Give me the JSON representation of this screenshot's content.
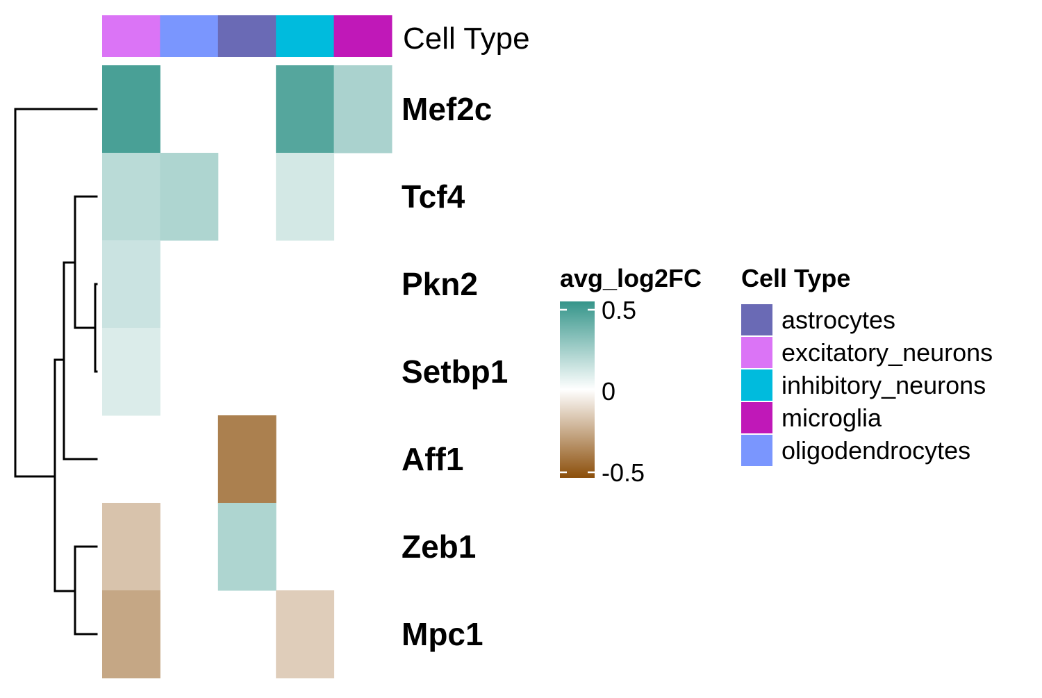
{
  "chart_data": {
    "type": "heatmap",
    "title": "",
    "annotation_label": "Cell Type",
    "columns": [
      "excitatory_neurons",
      "oligodendrocytes",
      "astrocytes",
      "inhibitory_neurons",
      "microglia"
    ],
    "rows": [
      "Mef2c",
      "Tcf4",
      "Pkn2",
      "Setbp1",
      "Aff1",
      "Zeb1",
      "Mpc1"
    ],
    "values": [
      [
        0.45,
        null,
        null,
        0.42,
        0.21
      ],
      [
        0.17,
        0.2,
        null,
        0.11,
        null
      ],
      [
        0.13,
        null,
        null,
        null,
        null
      ],
      [
        0.09,
        null,
        null,
        null,
        null
      ],
      [
        null,
        null,
        -0.36,
        null,
        null
      ],
      [
        -0.17,
        null,
        0.2,
        null,
        -0.0
      ],
      [
        -0.25,
        null,
        null,
        -0.14,
        null
      ]
    ],
    "color_scale": {
      "title": "avg_log2FC",
      "min": -0.5,
      "max": 0.5,
      "low_color": "#8B4E0A",
      "mid_color": "#FFFFFF",
      "high_color": "#35958A",
      "ticks": [
        {
          "value": 0.5,
          "label": "0.5"
        },
        {
          "value": 0,
          "label": "0"
        },
        {
          "value": -0.5,
          "label": "-0.5"
        }
      ]
    },
    "annotation_legend": {
      "title": "Cell Type",
      "items": [
        {
          "name": "astrocytes",
          "color": "#6A6AB5"
        },
        {
          "name": "excitatory_neurons",
          "color": "#DB74F6"
        },
        {
          "name": "inhibitory_neurons",
          "color": "#00BBDD"
        },
        {
          "name": "microglia",
          "color": "#C018B8"
        },
        {
          "name": "oligodendrocytes",
          "color": "#7A96FE"
        }
      ]
    },
    "dendrogram": "rows",
    "legend_position": "right"
  }
}
